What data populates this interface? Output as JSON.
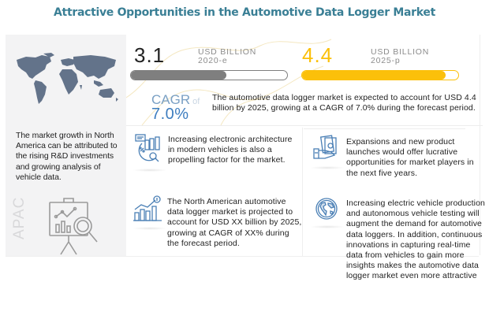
{
  "title": "Attractive Opportunities in the Automotive Data Logger Market",
  "left_panel": {
    "text": "The market growth in North America can be attributed to the rising R&D investments and growing analysis of vehicle data.",
    "region_label": "APAC"
  },
  "stats": {
    "current": {
      "value": "3.1",
      "unit": "USD BILLION",
      "year": "2020-e",
      "fill_percent": 61,
      "color": "#7f7f7f"
    },
    "forecast": {
      "value": "4.4",
      "unit": "USD BILLION",
      "year": "2025-p",
      "fill_percent": 92,
      "color": "#fbc00a"
    }
  },
  "cagr": {
    "label": "CAGR",
    "of": "of",
    "value": "7.0%",
    "text": "The automotive data logger market is expected to account for USD 4.4 billion by 2025, growing at a CAGR of 7.0% during the forecast period."
  },
  "cards": [
    {
      "icon": "analytics-icon",
      "text": "Increasing electronic architecture in modern vehicles is also a propelling factor for the market."
    },
    {
      "icon": "money-hand-icon",
      "text": "Expansions and new product launches would offer lucrative opportunities for market players in the next five years."
    },
    {
      "icon": "growth-chart-dollar-icon",
      "text": "The North American automotive data logger market is projected to account for USD XX billion by 2025, growing at CAGR of XX% during the forecast period."
    },
    {
      "icon": "globe-icon",
      "text": "Increasing electric vehicle production and autonomous vehicle testing will augment the demand for automotive data loggers. In addition, continuous innovations in capturing real-time data from vehicles to gain more insights makes the automotive data logger market even more attractive"
    }
  ],
  "colors": {
    "title": "#3a7f95",
    "icon_blue": "#4a7fb5",
    "accent_yellow": "#fbc00a"
  }
}
